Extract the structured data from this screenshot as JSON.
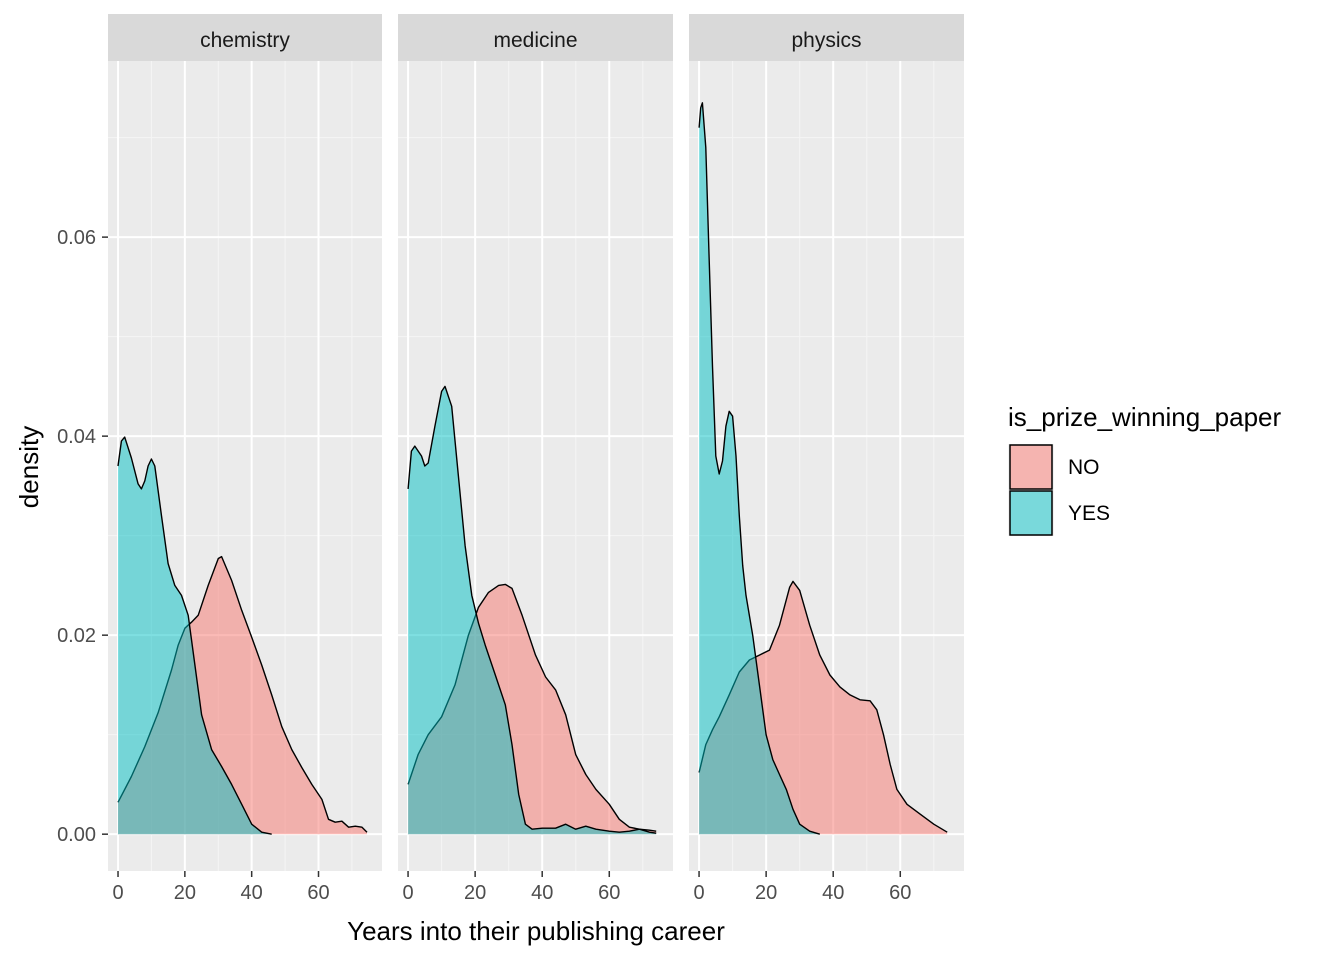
{
  "chart_data": {
    "type": "area",
    "subtype": "faceted density plot",
    "xlabel": "Years into their publishing career",
    "ylabel": "density",
    "xlim": [
      -3,
      79
    ],
    "ylim": [
      -0.0037,
      0.0777
    ],
    "x_ticks": [
      0,
      20,
      40,
      60
    ],
    "y_ticks": [
      0.0,
      0.02,
      0.04,
      0.06
    ],
    "y_tick_labels": [
      "0.00",
      "0.02",
      "0.04",
      "0.06"
    ],
    "grid": true,
    "legend": {
      "title": "is_prize_winning_paper",
      "position": "right",
      "entries": [
        {
          "label": "NO",
          "color": "#F8766D"
        },
        {
          "label": "YES",
          "color": "#00BFC4"
        }
      ]
    },
    "fill_alpha": 0.5,
    "facets": [
      {
        "title": "chemistry",
        "series": [
          {
            "name": "NO",
            "color": "#F8766D",
            "points": [
              [
                0,
                0.0032
              ],
              [
                4,
                0.0058
              ],
              [
                8,
                0.0088
              ],
              [
                12,
                0.0122
              ],
              [
                16,
                0.0165
              ],
              [
                18,
                0.019
              ],
              [
                20,
                0.0207
              ],
              [
                22,
                0.0213
              ],
              [
                24,
                0.022
              ],
              [
                27,
                0.025
              ],
              [
                30,
                0.0277
              ],
              [
                31,
                0.0279
              ],
              [
                34,
                0.0255
              ],
              [
                37,
                0.0225
              ],
              [
                40,
                0.0198
              ],
              [
                43,
                0.017
              ],
              [
                46,
                0.014
              ],
              [
                49,
                0.0108
              ],
              [
                52,
                0.0085
              ],
              [
                55,
                0.0067
              ],
              [
                58,
                0.005
              ],
              [
                61,
                0.0035
              ],
              [
                63,
                0.0015
              ],
              [
                65,
                0.0012
              ],
              [
                67,
                0.0013
              ],
              [
                69,
                0.0007
              ],
              [
                71,
                0.0008
              ],
              [
                73,
                0.0007
              ],
              [
                74.5,
                0.0002
              ]
            ]
          },
          {
            "name": "YES",
            "color": "#00BFC4",
            "points": [
              [
                0,
                0.037
              ],
              [
                1,
                0.0395
              ],
              [
                2,
                0.0399
              ],
              [
                4,
                0.0378
              ],
              [
                6,
                0.0352
              ],
              [
                7,
                0.0347
              ],
              [
                8,
                0.0355
              ],
              [
                9,
                0.037
              ],
              [
                10,
                0.0377
              ],
              [
                11,
                0.037
              ],
              [
                13,
                0.032
              ],
              [
                15,
                0.0272
              ],
              [
                17,
                0.025
              ],
              [
                19,
                0.024
              ],
              [
                21,
                0.022
              ],
              [
                23,
                0.017
              ],
              [
                25,
                0.012
              ],
              [
                28,
                0.0085
              ],
              [
                31,
                0.0068
              ],
              [
                34,
                0.005
              ],
              [
                37,
                0.003
              ],
              [
                40,
                0.001
              ],
              [
                43,
                0.0002
              ],
              [
                46,
                0.0
              ]
            ]
          }
        ]
      },
      {
        "title": "medicine",
        "series": [
          {
            "name": "NO",
            "color": "#F8766D",
            "points": [
              [
                0,
                0.005
              ],
              [
                3,
                0.008
              ],
              [
                6,
                0.01
              ],
              [
                10,
                0.0118
              ],
              [
                14,
                0.015
              ],
              [
                18,
                0.02
              ],
              [
                21,
                0.0228
              ],
              [
                24,
                0.0243
              ],
              [
                27,
                0.025
              ],
              [
                29,
                0.0251
              ],
              [
                31,
                0.0247
              ],
              [
                34,
                0.022
              ],
              [
                38,
                0.018
              ],
              [
                41,
                0.0158
              ],
              [
                44,
                0.0145
              ],
              [
                47,
                0.012
              ],
              [
                50,
                0.008
              ],
              [
                53,
                0.006
              ],
              [
                56,
                0.0045
              ],
              [
                60,
                0.003
              ],
              [
                63,
                0.0015
              ],
              [
                66,
                0.0007
              ],
              [
                69,
                0.0005
              ],
              [
                72,
                0.0004
              ],
              [
                74,
                0.0003
              ]
            ]
          },
          {
            "name": "YES",
            "color": "#00BFC4",
            "points": [
              [
                0,
                0.0347
              ],
              [
                1,
                0.0385
              ],
              [
                2,
                0.039
              ],
              [
                4,
                0.038
              ],
              [
                5,
                0.037
              ],
              [
                6,
                0.0373
              ],
              [
                8,
                0.041
              ],
              [
                10,
                0.0445
              ],
              [
                11,
                0.045
              ],
              [
                13,
                0.043
              ],
              [
                15,
                0.036
              ],
              [
                17,
                0.029
              ],
              [
                19,
                0.024
              ],
              [
                21,
                0.0212
              ],
              [
                23,
                0.019
              ],
              [
                26,
                0.016
              ],
              [
                29,
                0.013
              ],
              [
                31,
                0.009
              ],
              [
                33,
                0.004
              ],
              [
                35,
                0.001
              ],
              [
                37,
                0.0005
              ],
              [
                40,
                0.0006
              ],
              [
                44,
                0.0006
              ],
              [
                47,
                0.001
              ],
              [
                50,
                0.0005
              ],
              [
                53,
                0.0008
              ],
              [
                56,
                0.0005
              ],
              [
                60,
                0.0003
              ],
              [
                63,
                0.0002
              ],
              [
                66,
                0.0003
              ],
              [
                69,
                0.0005
              ],
              [
                72,
                0.0002
              ],
              [
                74,
                0.0001
              ]
            ]
          }
        ]
      },
      {
        "title": "physics",
        "series": [
          {
            "name": "NO",
            "color": "#F8766D",
            "points": [
              [
                0,
                0.0062
              ],
              [
                2,
                0.009
              ],
              [
                4,
                0.0105
              ],
              [
                6,
                0.0118
              ],
              [
                9,
                0.014
              ],
              [
                12,
                0.0163
              ],
              [
                15,
                0.0175
              ],
              [
                18,
                0.018
              ],
              [
                21,
                0.0185
              ],
              [
                24,
                0.021
              ],
              [
                27,
                0.0248
              ],
              [
                28,
                0.0254
              ],
              [
                30,
                0.0245
              ],
              [
                33,
                0.021
              ],
              [
                36,
                0.018
              ],
              [
                39,
                0.016
              ],
              [
                42,
                0.0148
              ],
              [
                45,
                0.014
              ],
              [
                48,
                0.0135
              ],
              [
                51,
                0.0134
              ],
              [
                53,
                0.0125
              ],
              [
                55,
                0.01
              ],
              [
                57,
                0.007
              ],
              [
                59,
                0.0045
              ],
              [
                62,
                0.003
              ],
              [
                66,
                0.002
              ],
              [
                70,
                0.001
              ],
              [
                74,
                0.0002
              ]
            ]
          },
          {
            "name": "YES",
            "color": "#00BFC4",
            "points": [
              [
                0,
                0.071
              ],
              [
                0.5,
                0.073
              ],
              [
                1,
                0.0735
              ],
              [
                2,
                0.069
              ],
              [
                3,
                0.058
              ],
              [
                4,
                0.047
              ],
              [
                5,
                0.038
              ],
              [
                6,
                0.0362
              ],
              [
                7,
                0.0375
              ],
              [
                8,
                0.041
              ],
              [
                9,
                0.0425
              ],
              [
                10,
                0.042
              ],
              [
                11,
                0.038
              ],
              [
                12,
                0.032
              ],
              [
                13,
                0.027
              ],
              [
                14,
                0.024
              ],
              [
                16,
                0.02
              ],
              [
                18,
                0.015
              ],
              [
                20,
                0.01
              ],
              [
                22,
                0.0075
              ],
              [
                24,
                0.006
              ],
              [
                26,
                0.0045
              ],
              [
                28,
                0.0025
              ],
              [
                30,
                0.001
              ],
              [
                33,
                0.0003
              ],
              [
                36,
                0.0
              ]
            ]
          }
        ]
      }
    ]
  }
}
